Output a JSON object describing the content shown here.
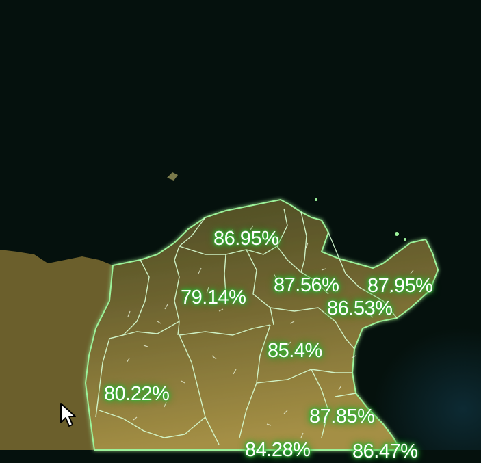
{
  "map": {
    "colors": {
      "sea": "#05110d",
      "land": "#a48f45",
      "border": "#d8ffd4",
      "glow": "#3fd14a"
    },
    "region_labels": [
      "86.95%",
      "79.14%",
      "87.56%",
      "87.95%",
      "86.53%",
      "85.4%",
      "80.22%",
      "87.85%",
      "84.28%",
      "86.47%"
    ]
  },
  "cursor": {
    "icon": "mouse-pointer-icon"
  }
}
